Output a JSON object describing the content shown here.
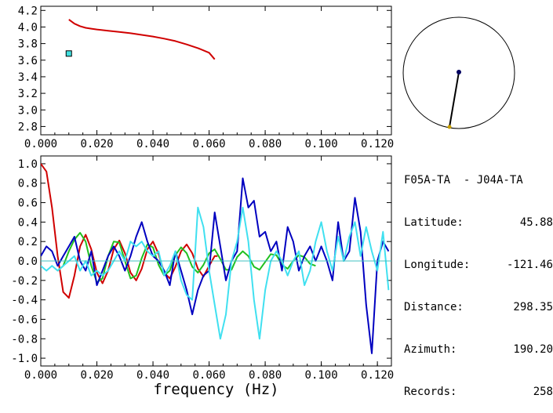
{
  "chart_data": [
    {
      "type": "line",
      "xlim": [
        0.0,
        0.125
      ],
      "ylim": [
        2.7,
        4.25
      ],
      "xticks": [
        "0.000",
        "0.020",
        "0.040",
        "0.060",
        "0.080",
        "0.100",
        "0.120"
      ],
      "yticks": [
        "2.8",
        "3.0",
        "3.2",
        "3.4",
        "3.6",
        "3.8",
        "4.0",
        "4.2"
      ],
      "series": [
        {
          "color": "#d00000",
          "x": [
            0.01,
            0.012,
            0.014,
            0.016,
            0.018,
            0.02,
            0.024,
            0.028,
            0.032,
            0.036,
            0.04,
            0.044,
            0.048,
            0.052,
            0.056,
            0.06,
            0.062
          ],
          "y": [
            4.09,
            4.04,
            4.01,
            3.99,
            3.98,
            3.97,
            3.955,
            3.94,
            3.925,
            3.905,
            3.885,
            3.86,
            3.83,
            3.79,
            3.745,
            3.69,
            3.61
          ]
        }
      ],
      "markers": [
        {
          "x": 0.01,
          "y": 3.68,
          "color": "#40e0e0"
        }
      ]
    },
    {
      "type": "line",
      "xlim": [
        0.0,
        0.125
      ],
      "ylim": [
        -1.08,
        1.08
      ],
      "xticks": [
        "0.000",
        "0.020",
        "0.040",
        "0.060",
        "0.080",
        "0.100",
        "0.120"
      ],
      "yticks": [
        "1.0",
        "0.8",
        "0.6",
        "0.4",
        "0.2",
        "0.0",
        "-0.2",
        "-0.4",
        "-0.6",
        "-0.8",
        "-1.0"
      ],
      "xlabel": "frequency (Hz)",
      "series": [
        {
          "color": "#d00000",
          "x": [
            0.0,
            0.002,
            0.004,
            0.006,
            0.008,
            0.01,
            0.012,
            0.014,
            0.016,
            0.018,
            0.02,
            0.022,
            0.024,
            0.026,
            0.028,
            0.03,
            0.032,
            0.034,
            0.036,
            0.038,
            0.04,
            0.042,
            0.044,
            0.046,
            0.048,
            0.05,
            0.052,
            0.054,
            0.056,
            0.058,
            0.06,
            0.062,
            0.063
          ],
          "y": [
            1.0,
            0.92,
            0.55,
            0.05,
            -0.32,
            -0.38,
            -0.15,
            0.15,
            0.27,
            0.12,
            -0.12,
            -0.23,
            -0.1,
            0.12,
            0.21,
            0.08,
            -0.12,
            -0.2,
            -0.08,
            0.12,
            0.2,
            0.07,
            -0.12,
            -0.18,
            -0.06,
            0.1,
            0.17,
            0.08,
            -0.08,
            -0.16,
            -0.05,
            0.05,
            0.05
          ]
        },
        {
          "color": "#20c020",
          "x": [
            0.006,
            0.008,
            0.01,
            0.012,
            0.014,
            0.016,
            0.018,
            0.02,
            0.022,
            0.024,
            0.026,
            0.028,
            0.03,
            0.032,
            0.034,
            0.036,
            0.038,
            0.04,
            0.042,
            0.044,
            0.046,
            0.048,
            0.05,
            0.052,
            0.054,
            0.056,
            0.058,
            0.06,
            0.062,
            0.064,
            0.066,
            0.068,
            0.07,
            0.072,
            0.074,
            0.076,
            0.078,
            0.08,
            0.082,
            0.084,
            0.086,
            0.088,
            0.09,
            0.092,
            0.094,
            0.096,
            0.098
          ],
          "y": [
            -0.1,
            -0.05,
            0.1,
            0.22,
            0.29,
            0.2,
            -0.05,
            -0.22,
            -0.18,
            0.05,
            0.2,
            0.19,
            0.0,
            -0.18,
            -0.15,
            0.03,
            0.17,
            0.14,
            -0.04,
            -0.15,
            -0.1,
            0.06,
            0.14,
            0.08,
            -0.06,
            -0.12,
            -0.04,
            0.08,
            0.12,
            0.02,
            -0.09,
            -0.09,
            0.04,
            0.1,
            0.05,
            -0.06,
            -0.09,
            -0.01,
            0.07,
            0.06,
            -0.04,
            -0.08,
            0.0,
            0.06,
            0.04,
            -0.03,
            -0.05
          ]
        },
        {
          "color": "#0000c0",
          "x": [
            0.0,
            0.002,
            0.004,
            0.006,
            0.008,
            0.01,
            0.012,
            0.014,
            0.016,
            0.018,
            0.02,
            0.022,
            0.024,
            0.026,
            0.028,
            0.03,
            0.032,
            0.034,
            0.036,
            0.038,
            0.04,
            0.042,
            0.044,
            0.046,
            0.048,
            0.05,
            0.052,
            0.054,
            0.056,
            0.058,
            0.06,
            0.062,
            0.064,
            0.066,
            0.068,
            0.07,
            0.072,
            0.074,
            0.076,
            0.078,
            0.08,
            0.082,
            0.084,
            0.086,
            0.088,
            0.09,
            0.092,
            0.094,
            0.096,
            0.098,
            0.1,
            0.102,
            0.104,
            0.106,
            0.108,
            0.11,
            0.112,
            0.114,
            0.116,
            0.118,
            0.12,
            0.122,
            0.124
          ],
          "y": [
            0.05,
            0.15,
            0.1,
            -0.05,
            0.05,
            0.15,
            0.25,
            0.0,
            -0.1,
            0.1,
            -0.25,
            -0.1,
            0.05,
            0.15,
            0.05,
            -0.1,
            0.05,
            0.25,
            0.4,
            0.2,
            0.05,
            0.0,
            -0.1,
            -0.25,
            0.1,
            -0.1,
            -0.3,
            -0.55,
            -0.3,
            -0.15,
            -0.1,
            0.5,
            0.15,
            -0.2,
            0.0,
            0.1,
            0.85,
            0.55,
            0.62,
            0.25,
            0.3,
            0.1,
            0.2,
            -0.1,
            0.35,
            0.2,
            -0.1,
            0.05,
            0.15,
            0.0,
            0.15,
            0.0,
            -0.2,
            0.4,
            0.0,
            0.1,
            0.65,
            0.3,
            -0.45,
            -0.95,
            0.0,
            0.2,
            0.1
          ]
        },
        {
          "color": "#40e0f0",
          "x": [
            0.0,
            0.002,
            0.004,
            0.006,
            0.008,
            0.01,
            0.012,
            0.014,
            0.016,
            0.018,
            0.02,
            0.022,
            0.024,
            0.026,
            0.028,
            0.03,
            0.032,
            0.034,
            0.036,
            0.038,
            0.04,
            0.042,
            0.044,
            0.046,
            0.048,
            0.05,
            0.052,
            0.054,
            0.056,
            0.058,
            0.06,
            0.062,
            0.064,
            0.066,
            0.068,
            0.07,
            0.072,
            0.074,
            0.076,
            0.078,
            0.08,
            0.082,
            0.084,
            0.086,
            0.088,
            0.09,
            0.092,
            0.094,
            0.096,
            0.098,
            0.1,
            0.102,
            0.104,
            0.106,
            0.108,
            0.11,
            0.112,
            0.114,
            0.116,
            0.118,
            0.12,
            0.122,
            0.124
          ],
          "y": [
            -0.05,
            -0.1,
            -0.05,
            -0.1,
            -0.05,
            0.0,
            0.05,
            -0.1,
            0.0,
            -0.15,
            -0.1,
            -0.15,
            -0.1,
            0.0,
            0.1,
            0.0,
            0.2,
            0.15,
            0.2,
            0.1,
            0.05,
            0.1,
            -0.15,
            -0.05,
            0.1,
            -0.2,
            -0.35,
            -0.4,
            0.55,
            0.35,
            -0.1,
            -0.45,
            -0.8,
            -0.55,
            0.0,
            0.2,
            0.55,
            0.2,
            -0.4,
            -0.8,
            -0.3,
            0.0,
            0.1,
            0.0,
            -0.15,
            0.0,
            0.1,
            -0.25,
            -0.1,
            0.2,
            0.4,
            0.1,
            -0.1,
            0.25,
            0.0,
            0.25,
            0.4,
            0.05,
            0.35,
            0.1,
            -0.1,
            0.3,
            -0.3
          ]
        },
        {
          "color": "#40c0c0",
          "x": [
            0.0,
            0.125
          ],
          "y": [
            0.0,
            0.0
          ]
        }
      ]
    }
  ],
  "map": {
    "center": {
      "color": "#000060"
    },
    "station": {
      "color": "#c8a000"
    }
  },
  "info": {
    "pair": "F05A-TA  - J04A-TA",
    "rows": [
      {
        "key": "Latitude:",
        "value": "45.88"
      },
      {
        "key": "Longitude:",
        "value": "-121.46"
      },
      {
        "key": "Distance:",
        "value": "298.35"
      },
      {
        "key": "Azimuth:",
        "value": "190.20"
      },
      {
        "key": "Records:",
        "value": "258"
      }
    ]
  }
}
